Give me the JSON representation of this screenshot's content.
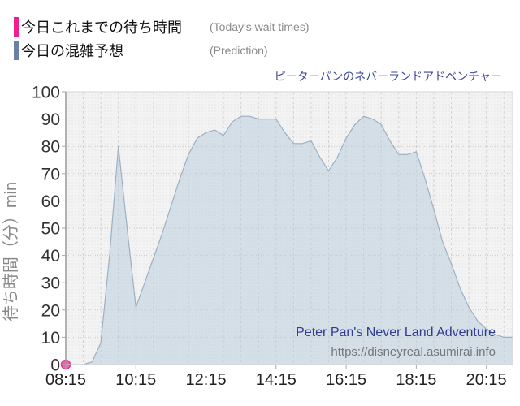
{
  "legend": {
    "today": {
      "label": "今日これまでの待ち時間",
      "sublabel": "(Today's wait times)",
      "color": "#F01E8F"
    },
    "prediction": {
      "label": "今日の混雑予想",
      "sublabel": "(Prediction)",
      "color": "#6C7FA6"
    }
  },
  "title": "ピーターパンのネバーランドアドベンチャー",
  "watermark": {
    "name": "Peter Pan's Never Land Adventure",
    "url": "https://disneyreal.asumirai.info"
  },
  "chart_data": {
    "type": "area",
    "title": "ピーターパンのネバーランドアドベンチャー",
    "xlabel": "",
    "ylabel": "待ち時間（分）min",
    "ylim": [
      0,
      100
    ],
    "y_tick_step": 10,
    "y_ticks": [
      0,
      10,
      20,
      30,
      40,
      50,
      60,
      70,
      80,
      90,
      100
    ],
    "x_start": "08:15",
    "x_end": "21:00",
    "x_tick_labels": [
      "08:15",
      "10:15",
      "12:15",
      "14:15",
      "16:15",
      "18:15",
      "20:15"
    ],
    "x_gridline_minutes": 30,
    "grid": true,
    "legend_position": "top-left",
    "series": [
      {
        "name": "今日これまでの待ち時間",
        "type": "point",
        "color": "#F360AE",
        "edge_color": "#E13A96",
        "times": [
          "08:15"
        ],
        "values": [
          0
        ]
      },
      {
        "name": "今日の混雑予想",
        "type": "area",
        "fill": "#B8CBDC",
        "fill_opacity": 0.5,
        "stroke": "#9CB0C4",
        "times": [
          "08:15",
          "08:30",
          "08:45",
          "09:00",
          "09:15",
          "09:30",
          "09:45",
          "10:00",
          "10:15",
          "10:30",
          "10:45",
          "11:00",
          "11:15",
          "11:30",
          "11:45",
          "12:00",
          "12:15",
          "12:30",
          "12:45",
          "13:00",
          "13:15",
          "13:30",
          "13:45",
          "14:00",
          "14:15",
          "14:30",
          "14:45",
          "15:00",
          "15:15",
          "15:30",
          "15:45",
          "16:00",
          "16:15",
          "16:30",
          "16:45",
          "17:00",
          "17:15",
          "17:30",
          "17:45",
          "18:00",
          "18:15",
          "18:30",
          "18:45",
          "19:00",
          "19:15",
          "19:30",
          "19:45",
          "20:00",
          "20:15",
          "20:30",
          "20:45",
          "21:00"
        ],
        "values": [
          0,
          0,
          0,
          1,
          8,
          40,
          80,
          50,
          21,
          30,
          39,
          48,
          58,
          68,
          77,
          83,
          85,
          86,
          84,
          89,
          91,
          91,
          90,
          90,
          90,
          85,
          81,
          81,
          82,
          76,
          71,
          76,
          83,
          88,
          91,
          90,
          88,
          82,
          77,
          77,
          78,
          68,
          57,
          45,
          37,
          28,
          21,
          16,
          13,
          11,
          10,
          10
        ]
      }
    ]
  },
  "style_colors": {
    "plot_bg": "#F3F3F3",
    "plot_dot": "#E3E3E3",
    "h_grid": "#C9C9C9",
    "v_grid": "#D2D2D2",
    "border": "#D6D6D6",
    "axis": "#9A9A9A",
    "tick": "#AAAAAA",
    "y_label": "#333333",
    "x_label": "#222222",
    "axis_title": "#888888",
    "watermark_name": "#2F3C8F",
    "watermark_url": "#777777"
  }
}
